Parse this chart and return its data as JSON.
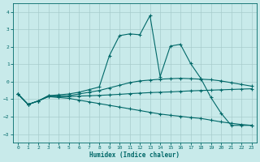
{
  "xlabel": "Humidex (Indice chaleur)",
  "bg_color": "#c8eaea",
  "grid_color": "#a8cccc",
  "line_color": "#006868",
  "xlim": [
    -0.5,
    23.5
  ],
  "ylim": [
    -3.5,
    4.5
  ],
  "yticks": [
    -3,
    -2,
    -1,
    0,
    1,
    2,
    3,
    4
  ],
  "xticks": [
    0,
    1,
    2,
    3,
    4,
    5,
    6,
    7,
    8,
    9,
    10,
    11,
    12,
    13,
    14,
    15,
    16,
    17,
    18,
    19,
    20,
    21,
    22,
    23
  ],
  "line1_x": [
    0,
    1,
    2,
    3,
    4,
    5,
    6,
    7,
    8,
    9,
    10,
    11,
    12,
    13,
    14,
    15,
    16,
    17,
    18,
    19,
    20,
    21,
    22,
    23
  ],
  "line1_y": [
    -0.7,
    -1.3,
    -1.1,
    -0.8,
    -0.75,
    -0.7,
    -0.6,
    -0.45,
    -0.3,
    1.5,
    2.65,
    2.75,
    2.7,
    3.8,
    0.3,
    2.05,
    2.15,
    1.05,
    0.2,
    -0.9,
    -1.8,
    -2.5,
    -2.5,
    -2.5
  ],
  "line2_x": [
    0,
    1,
    2,
    3,
    4,
    5,
    6,
    7,
    8,
    9,
    10,
    11,
    12,
    13,
    14,
    15,
    16,
    17,
    18,
    19,
    20,
    21,
    22,
    23
  ],
  "line2_y": [
    -0.7,
    -1.3,
    -1.1,
    -0.8,
    -0.8,
    -0.8,
    -0.7,
    -0.6,
    -0.5,
    -0.35,
    -0.2,
    -0.05,
    0.05,
    0.1,
    0.15,
    0.18,
    0.2,
    0.18,
    0.15,
    0.12,
    0.05,
    -0.05,
    -0.15,
    -0.25
  ],
  "line3_x": [
    0,
    1,
    2,
    3,
    4,
    5,
    6,
    7,
    8,
    9,
    10,
    11,
    12,
    13,
    14,
    15,
    16,
    17,
    18,
    19,
    20,
    21,
    22,
    23
  ],
  "line3_y": [
    -0.7,
    -1.3,
    -1.1,
    -0.85,
    -0.85,
    -0.85,
    -0.82,
    -0.8,
    -0.78,
    -0.75,
    -0.72,
    -0.68,
    -0.65,
    -0.62,
    -0.6,
    -0.58,
    -0.55,
    -0.52,
    -0.5,
    -0.48,
    -0.46,
    -0.44,
    -0.42,
    -0.4
  ],
  "line4_x": [
    0,
    1,
    2,
    3,
    4,
    5,
    6,
    7,
    8,
    9,
    10,
    11,
    12,
    13,
    14,
    15,
    16,
    17,
    18,
    19,
    20,
    21,
    22,
    23
  ],
  "line4_y": [
    -0.7,
    -1.3,
    -1.1,
    -0.85,
    -0.9,
    -0.95,
    -1.05,
    -1.15,
    -1.25,
    -1.35,
    -1.45,
    -1.55,
    -1.65,
    -1.75,
    -1.85,
    -1.92,
    -1.98,
    -2.05,
    -2.1,
    -2.2,
    -2.3,
    -2.38,
    -2.45,
    -2.5
  ]
}
